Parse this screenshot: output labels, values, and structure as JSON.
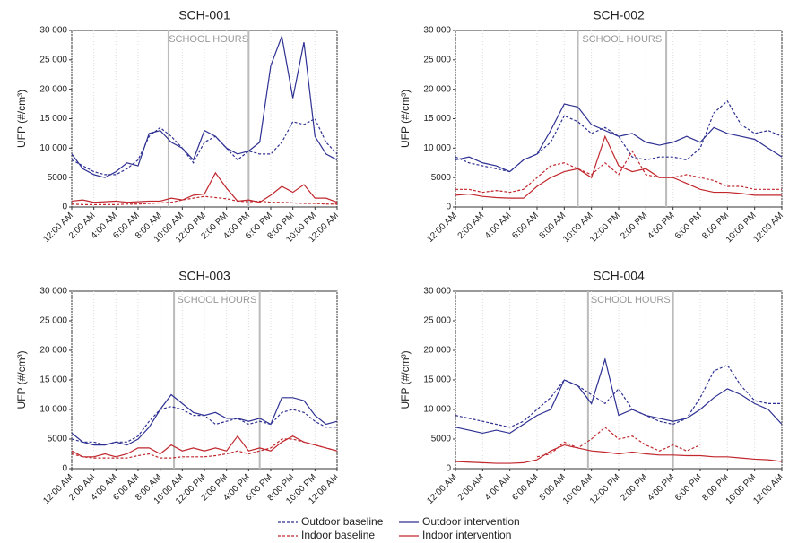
{
  "chart_data": [
    {
      "type": "line",
      "title": "SCH-001",
      "y_label": "UFP (#/cm³)",
      "x": [
        0,
        1,
        2,
        3,
        4,
        5,
        6,
        7,
        8,
        9,
        10,
        11,
        12,
        13,
        14,
        15,
        16,
        17,
        18,
        19,
        20,
        21,
        22,
        23,
        24
      ],
      "xlim": [
        0,
        24
      ],
      "xticks": [
        {
          "value": 0,
          "label": "12:00 AM"
        },
        {
          "value": 2,
          "label": "2:00 AM"
        },
        {
          "value": 4,
          "label": "4:00 AM"
        },
        {
          "value": 6,
          "label": "6:00 AM"
        },
        {
          "value": 8,
          "label": "8:00 AM"
        },
        {
          "value": 10,
          "label": "10:00 AM"
        },
        {
          "value": 12,
          "label": "12:00 PM"
        },
        {
          "value": 14,
          "label": "2:00 PM"
        },
        {
          "value": 16,
          "label": "4:00 PM"
        },
        {
          "value": 18,
          "label": "6:00 PM"
        },
        {
          "value": 20,
          "label": "8:00 PM"
        },
        {
          "value": 22,
          "label": "10:00 PM"
        },
        {
          "value": 24,
          "label": "12:00 AM"
        }
      ],
      "ylim": [
        0,
        30000
      ],
      "yticks": [
        0,
        5000,
        {
          "value": 10000,
          "label": "10 000"
        },
        {
          "value": 15000,
          "label": "15 000"
        },
        {
          "value": 20000,
          "label": "20 000"
        },
        {
          "value": 25000,
          "label": "25 000"
        },
        {
          "value": 30000,
          "label": "30 000"
        }
      ],
      "grid": "x",
      "annotation": {
        "text": "SCHOOL HOURS",
        "x": [
          8.75,
          16
        ]
      },
      "series": [
        {
          "name": "Outdoor baseline",
          "color": "#2e3192",
          "dashed": true,
          "values": [
            8000,
            7000,
            6000,
            5500,
            5500,
            6500,
            8000,
            12000,
            13500,
            12000,
            10000,
            7500,
            11000,
            12000,
            10000,
            8000,
            9500,
            9000,
            9000,
            11000,
            14500,
            14000,
            15000,
            11000,
            9000
          ]
        },
        {
          "name": "Indoor baseline",
          "color": "#c1272d",
          "dashed": true,
          "values": [
            500,
            400,
            400,
            400,
            400,
            500,
            500,
            600,
            700,
            800,
            1200,
            1500,
            1800,
            1600,
            1400,
            1000,
            900,
            1000,
            800,
            800,
            700,
            600,
            600,
            500,
            500
          ]
        },
        {
          "name": "Outdoor intervention",
          "color": "#2e3192",
          "dashed": false,
          "values": [
            9000,
            6500,
            5500,
            5000,
            6000,
            7500,
            7000,
            12500,
            13000,
            11000,
            10000,
            8000,
            13000,
            12000,
            10000,
            9000,
            9500,
            11000,
            24000,
            29000,
            18500,
            28000,
            12000,
            9000,
            8000
          ]
        },
        {
          "name": "Indoor intervention",
          "color": "#c1272d",
          "dashed": false,
          "values": [
            1000,
            1200,
            800,
            900,
            1000,
            800,
            900,
            1000,
            1000,
            1500,
            1200,
            2000,
            2200,
            5800,
            3200,
            1000,
            1200,
            800,
            2000,
            3500,
            2500,
            3800,
            1500,
            1500,
            800
          ]
        }
      ]
    },
    {
      "type": "line",
      "title": "SCH-002",
      "y_label": "UFP (#/cm³)",
      "x": [
        0,
        1,
        2,
        3,
        4,
        5,
        6,
        7,
        8,
        9,
        10,
        11,
        12,
        13,
        14,
        15,
        16,
        17,
        18,
        19,
        20,
        21,
        22,
        23,
        24
      ],
      "xlim": [
        0,
        24
      ],
      "xticks": [
        {
          "value": 0,
          "label": "12:00 AM"
        },
        {
          "value": 2,
          "label": "2:00 AM"
        },
        {
          "value": 4,
          "label": "4:00 AM"
        },
        {
          "value": 6,
          "label": "6:00 AM"
        },
        {
          "value": 8,
          "label": "8:00 AM"
        },
        {
          "value": 10,
          "label": "10:00 AM"
        },
        {
          "value": 12,
          "label": "12:00 PM"
        },
        {
          "value": 14,
          "label": "2:00 PM"
        },
        {
          "value": 16,
          "label": "4:00 PM"
        },
        {
          "value": 18,
          "label": "6:00 PM"
        },
        {
          "value": 20,
          "label": "8:00 PM"
        },
        {
          "value": 22,
          "label": "10:00 PM"
        },
        {
          "value": 24,
          "label": "12:00 AM"
        }
      ],
      "ylim": [
        0,
        30000
      ],
      "yticks": [
        0,
        5000,
        {
          "value": 10000,
          "label": "10 000"
        },
        {
          "value": 15000,
          "label": "15 000"
        },
        {
          "value": 20000,
          "label": "20 000"
        },
        {
          "value": 25000,
          "label": "25 000"
        },
        {
          "value": 30000,
          "label": "30 000"
        }
      ],
      "grid": "x",
      "annotation": {
        "text": "SCHOOL HOURS",
        "x": [
          9,
          15.5
        ]
      },
      "series": [
        {
          "name": "Outdoor baseline",
          "color": "#2e3192",
          "dashed": true,
          "values": [
            8500,
            7500,
            7000,
            6500,
            6000,
            8000,
            9000,
            11000,
            15500,
            14500,
            12500,
            13500,
            12000,
            8500,
            8000,
            8500,
            8500,
            8000,
            10000,
            16000,
            18000,
            14000,
            12500,
            13000,
            12000
          ]
        },
        {
          "name": "Indoor baseline",
          "color": "#c1272d",
          "dashed": true,
          "values": [
            3000,
            3000,
            2500,
            2800,
            2500,
            3000,
            5000,
            7000,
            7500,
            6500,
            5500,
            7500,
            5500,
            9500,
            5500,
            5000,
            5000,
            5500,
            5000,
            4500,
            3500,
            3500,
            3000,
            3000,
            3000
          ]
        },
        {
          "name": "Outdoor intervention",
          "color": "#2e3192",
          "dashed": false,
          "values": [
            8000,
            8500,
            7500,
            7000,
            6000,
            8000,
            9000,
            13000,
            17500,
            17000,
            14000,
            13000,
            12000,
            12500,
            11000,
            10500,
            11000,
            12000,
            11000,
            13500,
            12500,
            12000,
            11500,
            10000,
            8500
          ]
        },
        {
          "name": "Indoor intervention",
          "color": "#c1272d",
          "dashed": false,
          "values": [
            2000,
            2200,
            1800,
            1600,
            1500,
            1500,
            3500,
            5000,
            6000,
            6500,
            5000,
            12000,
            7000,
            6000,
            6500,
            5000,
            5000,
            4000,
            3000,
            2500,
            2500,
            2300,
            2000,
            2000,
            2000
          ]
        }
      ]
    },
    {
      "type": "line",
      "title": "SCH-003",
      "y_label": "UFP (#/cm³)",
      "x": [
        0,
        1,
        2,
        3,
        4,
        5,
        6,
        7,
        8,
        9,
        10,
        11,
        12,
        13,
        14,
        15,
        16,
        17,
        18,
        19,
        20,
        21,
        22,
        23,
        24
      ],
      "xlim": [
        0,
        24
      ],
      "xticks": [
        {
          "value": 0,
          "label": "12:00 AM"
        },
        {
          "value": 2,
          "label": "2:00 AM"
        },
        {
          "value": 4,
          "label": "4:00 AM"
        },
        {
          "value": 6,
          "label": "6:00 AM"
        },
        {
          "value": 8,
          "label": "8:00 AM"
        },
        {
          "value": 10,
          "label": "10:00 AM"
        },
        {
          "value": 12,
          "label": "12:00 PM"
        },
        {
          "value": 14,
          "label": "2:00 PM"
        },
        {
          "value": 16,
          "label": "4:00 PM"
        },
        {
          "value": 18,
          "label": "6:00 PM"
        },
        {
          "value": 20,
          "label": "8:00 PM"
        },
        {
          "value": 22,
          "label": "10:00 PM"
        },
        {
          "value": 24,
          "label": "12:00 AM"
        }
      ],
      "ylim": [
        0,
        30000
      ],
      "yticks": [
        0,
        5000,
        {
          "value": 10000,
          "label": "10 000"
        },
        {
          "value": 15000,
          "label": "15 000"
        },
        {
          "value": 20000,
          "label": "20 000"
        },
        {
          "value": 25000,
          "label": "25 000"
        },
        {
          "value": 30000,
          "label": "30 000"
        }
      ],
      "grid": "x",
      "annotation": {
        "text": "SCHOOL HOURS",
        "x": [
          9.25,
          17
        ]
      },
      "series": [
        {
          "name": "Outdoor baseline",
          "color": "#2e3192",
          "dashed": true,
          "values": [
            5000,
            4500,
            4500,
            4000,
            4500,
            4500,
            5500,
            8000,
            10000,
            10500,
            10000,
            9000,
            9000,
            7500,
            8000,
            8500,
            7500,
            8000,
            7500,
            9500,
            10000,
            9500,
            8000,
            7000,
            7000
          ]
        },
        {
          "name": "Indoor baseline",
          "color": "#c1272d",
          "dashed": true,
          "values": [
            2500,
            2000,
            1800,
            1800,
            1800,
            1800,
            2200,
            2500,
            1800,
            1800,
            2000,
            2000,
            2000,
            2200,
            2500,
            3000,
            2500,
            3000,
            3500,
            5000,
            5000,
            4500,
            4000,
            3500,
            3000
          ]
        },
        {
          "name": "Outdoor intervention",
          "color": "#2e3192",
          "dashed": false,
          "values": [
            6000,
            4500,
            4000,
            4000,
            4500,
            4000,
            5000,
            7000,
            10000,
            12500,
            11000,
            9500,
            9000,
            9500,
            8500,
            8500,
            8000,
            8500,
            7500,
            12000,
            12000,
            11500,
            9000,
            7500,
            8000
          ]
        },
        {
          "name": "Indoor intervention",
          "color": "#c1272d",
          "dashed": false,
          "values": [
            3000,
            2000,
            2000,
            2500,
            2000,
            2500,
            3500,
            3500,
            2500,
            4000,
            3000,
            3500,
            3000,
            3500,
            3000,
            5500,
            3000,
            3500,
            3000,
            4500,
            5500,
            4500,
            4000,
            3500,
            3000
          ]
        }
      ]
    },
    {
      "type": "line",
      "title": "SCH-004",
      "y_label": "UFP (#/cm³)",
      "x": [
        0,
        1,
        2,
        3,
        4,
        5,
        6,
        7,
        8,
        9,
        10,
        11,
        12,
        13,
        14,
        15,
        16,
        17,
        18,
        19,
        20,
        21,
        22,
        23,
        24
      ],
      "xlim": [
        0,
        24
      ],
      "xticks": [
        {
          "value": 0,
          "label": "12:00 AM"
        },
        {
          "value": 2,
          "label": "2:00 AM"
        },
        {
          "value": 4,
          "label": "4:00 AM"
        },
        {
          "value": 6,
          "label": "6:00 AM"
        },
        {
          "value": 8,
          "label": "8:00 AM"
        },
        {
          "value": 10,
          "label": "10:00 AM"
        },
        {
          "value": 12,
          "label": "12:00 PM"
        },
        {
          "value": 14,
          "label": "2:00 PM"
        },
        {
          "value": 16,
          "label": "4:00 PM"
        },
        {
          "value": 18,
          "label": "6:00 PM"
        },
        {
          "value": 20,
          "label": "8:00 PM"
        },
        {
          "value": 22,
          "label": "10:00 PM"
        },
        {
          "value": 24,
          "label": "12:00 AM"
        }
      ],
      "ylim": [
        0,
        30000
      ],
      "yticks": [
        0,
        5000,
        {
          "value": 10000,
          "label": "10 000"
        },
        {
          "value": 15000,
          "label": "15 000"
        },
        {
          "value": 20000,
          "label": "20 000"
        },
        {
          "value": 25000,
          "label": "25 000"
        },
        {
          "value": 30000,
          "label": "30 000"
        }
      ],
      "grid": "x",
      "annotation": {
        "text": "SCHOOL HOURS",
        "x": [
          9.75,
          16
        ]
      },
      "series": [
        {
          "name": "Outdoor baseline",
          "color": "#2e3192",
          "dashed": true,
          "values": [
            9000,
            8500,
            8000,
            7500,
            7000,
            8000,
            10000,
            12000,
            15000,
            14000,
            12500,
            11000,
            13500,
            10000,
            9000,
            8000,
            7500,
            8500,
            12000,
            16500,
            17500,
            14000,
            11500,
            11000,
            11000
          ]
        },
        {
          "name": "Indoor baseline",
          "color": "#c1272d",
          "dashed": true,
          "values": [
            null,
            null,
            null,
            null,
            null,
            null,
            2000,
            2500,
            4500,
            3500,
            5000,
            7000,
            5000,
            5500,
            4000,
            3000,
            4000,
            3000,
            4000,
            null,
            null,
            null,
            null,
            null,
            null
          ]
        },
        {
          "name": "Outdoor intervention",
          "color": "#2e3192",
          "dashed": false,
          "values": [
            7000,
            6500,
            6000,
            6500,
            6000,
            7500,
            9000,
            10000,
            15000,
            14000,
            11000,
            18500,
            9000,
            10000,
            9000,
            8500,
            8000,
            8500,
            10000,
            12000,
            13500,
            12500,
            11000,
            10000,
            7500
          ]
        },
        {
          "name": "Indoor intervention",
          "color": "#c1272d",
          "dashed": false,
          "values": [
            1200,
            1100,
            1000,
            900,
            900,
            1000,
            1500,
            3000,
            4000,
            3500,
            3000,
            2800,
            2500,
            2800,
            2500,
            2300,
            2300,
            2200,
            2200,
            2000,
            2000,
            1800,
            1600,
            1500,
            1200
          ]
        }
      ]
    }
  ]
}
